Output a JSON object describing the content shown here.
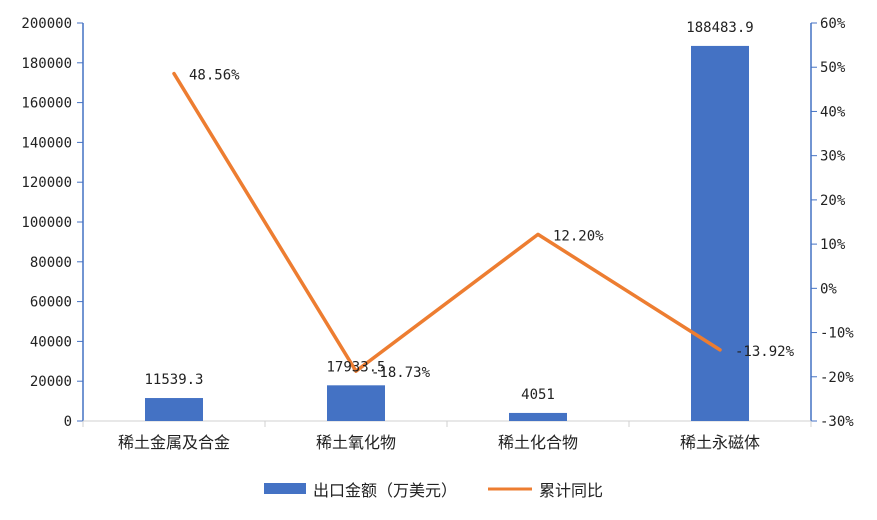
{
  "chart_data": {
    "type": "bar",
    "categories": [
      "稀土金属及合金",
      "稀土氧化物",
      "稀土化合物",
      "稀土永磁体"
    ],
    "series": [
      {
        "name": "出口金额（万美元）",
        "chart_type": "bar",
        "axis": "left",
        "color": "#4472C4",
        "values": [
          11539.3,
          17933.5,
          4051,
          188483.9
        ],
        "labels": [
          "11539.3",
          "17933.5",
          "4051",
          "188483.9"
        ]
      },
      {
        "name": "累计同比",
        "chart_type": "line",
        "axis": "right",
        "color": "#ED7D31",
        "values": [
          48.56,
          -18.73,
          12.2,
          -13.92
        ],
        "labels": [
          "48.56%",
          "-18.73%",
          "12.20%",
          "-13.92%"
        ]
      }
    ],
    "y_left": {
      "ylim": [
        0,
        200000
      ],
      "ticks": [
        "0",
        "20000",
        "40000",
        "60000",
        "80000",
        "100000",
        "120000",
        "140000",
        "160000",
        "180000",
        "200000"
      ]
    },
    "y_right": {
      "ylim": [
        -30,
        60
      ],
      "ticks": [
        "-30%",
        "-20%",
        "-10%",
        "0%",
        "10%",
        "20%",
        "30%",
        "40%",
        "50%",
        "60%"
      ]
    },
    "grid": false,
    "legend": "bottom",
    "title": "",
    "xlabel": "",
    "ylabel": ""
  }
}
